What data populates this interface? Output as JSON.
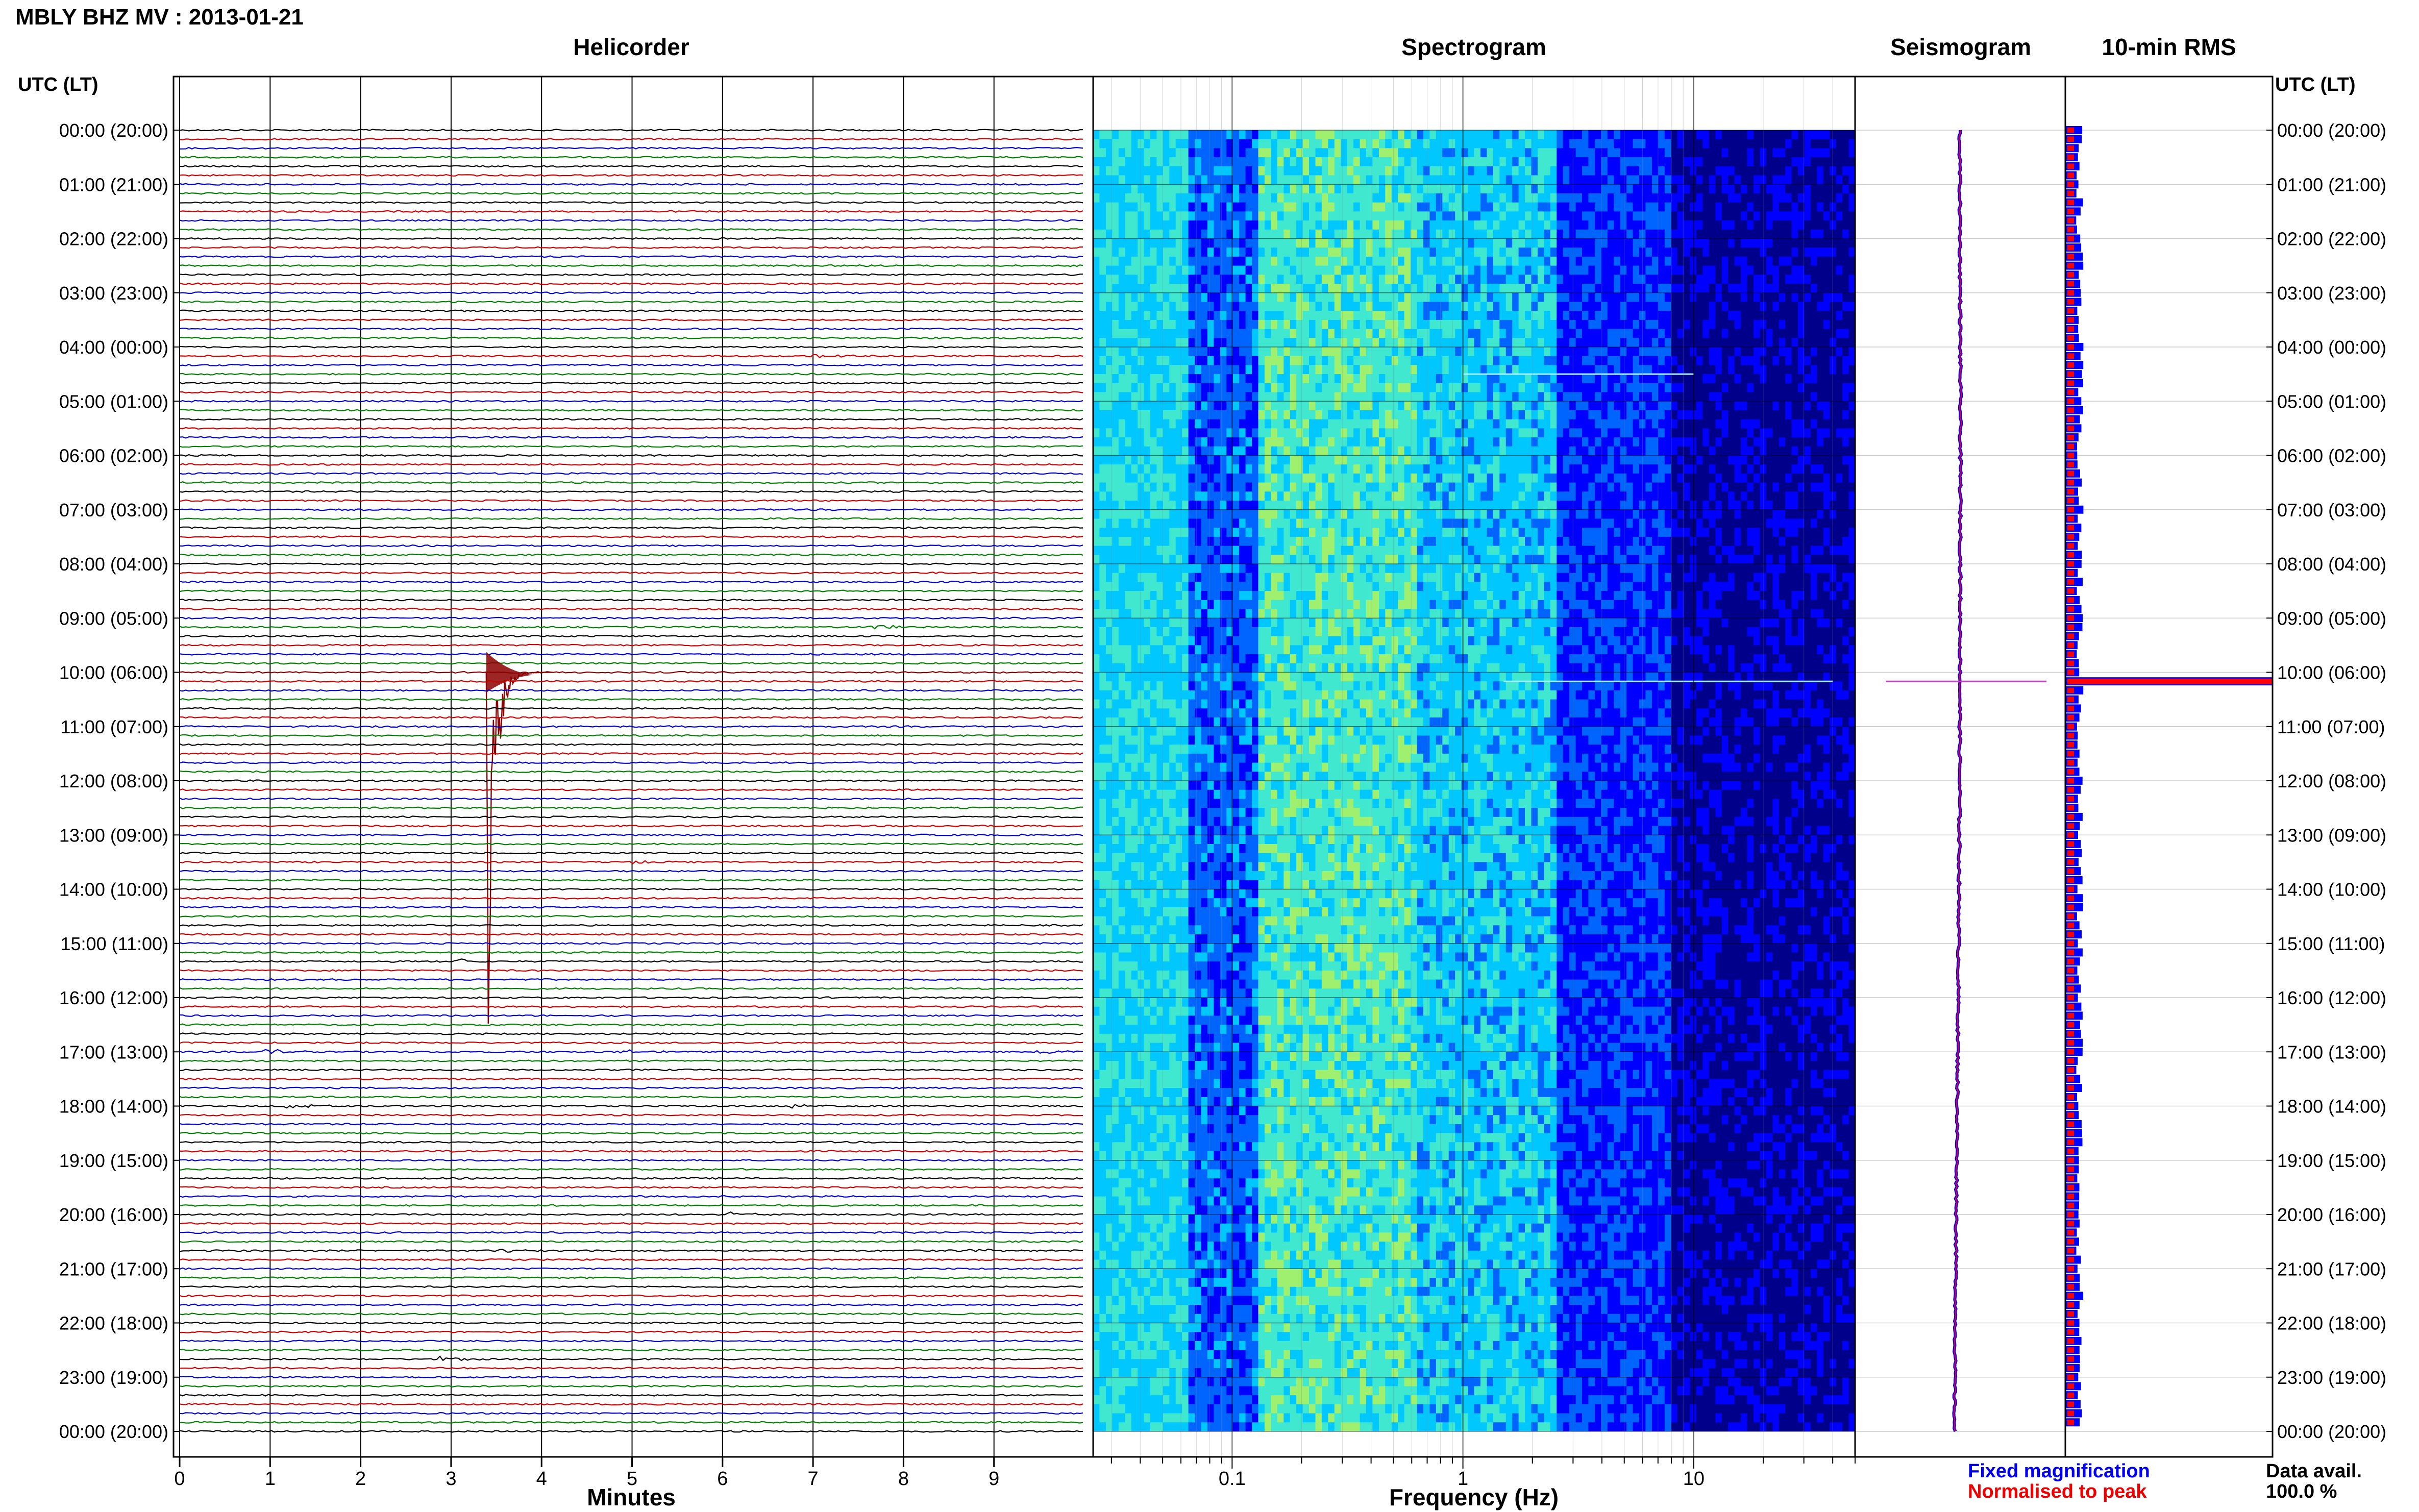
{
  "header": {
    "station_title": "MBLY BHZ MV : 2013-01-21",
    "panel_helicorder": "Helicorder",
    "panel_spectrogram": "Spectrogram",
    "panel_seismogram": "Seismogram",
    "panel_rms": "10-min RMS",
    "time_axis_left_label": "UTC (LT)",
    "time_axis_right_label": "UTC (LT)"
  },
  "footer": {
    "minutes_label": "Minutes",
    "frequency_label": "Frequency (Hz)",
    "legend_fixed": "Fixed magnification",
    "legend_normalised": "Normalised to peak",
    "data_avail_label": "Data avail.",
    "data_avail_value": "100.0 %"
  },
  "colors": {
    "trace_cycle": [
      "#000000",
      "#cc0000",
      "#0000cc",
      "#008000"
    ],
    "event_trace": "#8b0000",
    "rms_fixed": "#0000ff",
    "rms_normalised": "#ff0000",
    "legend_fixed": "#0000ee",
    "legend_normalised": "#ee0000"
  },
  "chart_data": [
    {
      "type": "line",
      "panel": "helicorder",
      "x_unit": "minutes",
      "xlim": [
        0,
        10
      ],
      "x_ticks": [
        0,
        1,
        2,
        3,
        4,
        5,
        6,
        7,
        8,
        9
      ],
      "xlabel": "Minutes",
      "row_minutes": 10,
      "y_tick_labels": [
        "00:00 (20:00)",
        "01:00 (21:00)",
        "02:00 (22:00)",
        "03:00 (23:00)",
        "04:00 (00:00)",
        "05:00 (01:00)",
        "06:00 (02:00)",
        "07:00 (03:00)",
        "08:00 (04:00)",
        "09:00 (05:00)",
        "10:00 (06:00)",
        "11:00 (07:00)",
        "12:00 (08:00)",
        "13:00 (09:00)",
        "14:00 (10:00)",
        "15:00 (11:00)",
        "16:00 (12:00)",
        "17:00 (13:00)",
        "18:00 (14:00)",
        "19:00 (15:00)",
        "20:00 (16:00)",
        "21:00 (17:00)",
        "22:00 (18:00)",
        "23:00 (19:00)",
        "00:00 (20:00)"
      ],
      "events": [
        {
          "utc": "10:00",
          "minute": 3.4,
          "relative_amplitude": 1.0
        },
        {
          "utc": "04:10",
          "minute": 7.0,
          "relative_amplitude": 0.04
        },
        {
          "utc": "09:10",
          "minute": 7.7,
          "relative_amplitude": 0.05
        },
        {
          "utc": "17:00",
          "minute": 9.5,
          "relative_amplitude": 0.05
        },
        {
          "utc": "17:00",
          "minute": 4.9,
          "relative_amplitude": 0.04
        },
        {
          "utc": "17:00",
          "minute": 1.0,
          "relative_amplitude": 0.04
        },
        {
          "utc": "18:00",
          "minute": 6.8,
          "relative_amplitude": 0.05
        },
        {
          "utc": "18:00",
          "minute": 1.2,
          "relative_amplitude": 0.03
        },
        {
          "utc": "20:00",
          "minute": 6.1,
          "relative_amplitude": 0.05
        },
        {
          "utc": "20:40",
          "minute": 3.6,
          "relative_amplitude": 0.03
        },
        {
          "utc": "20:40",
          "minute": 8.7,
          "relative_amplitude": 0.03
        },
        {
          "utc": "22:40",
          "minute": 2.9,
          "relative_amplitude": 0.05
        },
        {
          "utc": "13:30",
          "minute": 5.0,
          "relative_amplitude": 0.03
        },
        {
          "utc": "15:20",
          "minute": 3.1,
          "relative_amplitude": 0.03
        }
      ]
    },
    {
      "type": "heatmap",
      "panel": "spectrogram",
      "x_scale": "log",
      "xlim": [
        0.025,
        50
      ],
      "x_ticks": [
        0.1,
        1,
        10
      ],
      "x_tick_labels": [
        "0.1",
        "1",
        "10"
      ],
      "xlabel": "Frequency (Hz)",
      "rows_per_day": 144,
      "colormap": [
        "#00008b",
        "#0000ff",
        "#0064ff",
        "#00c8ff",
        "#40e8d0",
        "#a0f070"
      ],
      "spectral_lines": [
        {
          "utc": "04:30",
          "freq_range_hz": [
            1,
            10
          ]
        },
        {
          "utc": "10:10",
          "freq_range_hz": [
            1.5,
            40
          ]
        }
      ]
    },
    {
      "type": "line",
      "panel": "seismogram",
      "event_utc": "10:10"
    },
    {
      "type": "bar",
      "panel": "10-min RMS",
      "orientation": "horizontal",
      "series": [
        {
          "name": "Fixed magnification",
          "color": "#0000ff"
        },
        {
          "name": "Normalised to peak",
          "color": "#ff0000"
        }
      ],
      "peak_utc": "10:10",
      "peak_relative_value": 1.0,
      "typical_relative_value": 0.07
    }
  ]
}
